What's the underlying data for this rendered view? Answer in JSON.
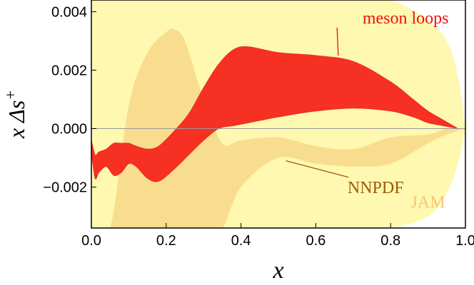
{
  "chart_data": {
    "type": "area",
    "title": "",
    "xlabel": "x",
    "ylabel": "x Δs",
    "ylabel_superscript": "+",
    "xlim": [
      0.0,
      1.0
    ],
    "ylim": [
      -0.0034,
      0.0044
    ],
    "xticks": [
      "0.0",
      "0.2",
      "0.4",
      "0.6",
      "0.8",
      "1.0"
    ],
    "yticks": [
      "−0.002",
      "0.000",
      "0.002",
      "0.004"
    ],
    "grid": false,
    "colors": {
      "jam": "#fef8b0",
      "nnpdf": "#f9dd8f",
      "meson": "#f73024",
      "meson_annot": "#ee1111",
      "nnpdf_annot": "#9c5a0a",
      "jam_annot": "#f6c574"
    },
    "series": [
      {
        "name": "JAM",
        "x": [
          0.0,
          0.1,
          0.2,
          0.3,
          0.4,
          0.5,
          0.6,
          0.7,
          0.8,
          0.9,
          0.95,
          0.98,
          1.0
        ],
        "upper": [
          0.0044,
          0.0044,
          0.0044,
          0.0044,
          0.0044,
          0.0044,
          0.0044,
          0.0044,
          0.0044,
          0.0037,
          0.003,
          0.0018,
          0.0
        ],
        "lower": [
          -0.0034,
          -0.0034,
          -0.0034,
          -0.0034,
          -0.0034,
          -0.0034,
          -0.0034,
          -0.0034,
          -0.0034,
          -0.003,
          -0.0022,
          -0.0012,
          0.0
        ]
      },
      {
        "name": "NNPDF",
        "x": [
          0.0,
          0.05,
          0.1,
          0.15,
          0.2,
          0.22,
          0.25,
          0.3,
          0.35,
          0.4,
          0.5,
          0.6,
          0.7,
          0.8,
          0.9,
          0.95,
          1.0
        ],
        "upper": [
          -0.0034,
          -0.0034,
          0.0008,
          0.0026,
          0.0033,
          0.0034,
          0.003,
          0.001,
          -0.0005,
          -0.0004,
          -0.0003,
          -0.0006,
          -0.0007,
          -0.0003,
          -0.0002,
          0.0,
          0.0
        ],
        "lower": [
          -0.0034,
          -0.0034,
          -0.0034,
          -0.0034,
          -0.0034,
          -0.0034,
          -0.0034,
          -0.0034,
          -0.0034,
          -0.002,
          -0.001,
          -0.0012,
          -0.0013,
          -0.0012,
          -0.0005,
          -0.0002,
          0.0
        ]
      },
      {
        "name": "meson loops",
        "x": [
          0.0,
          0.01,
          0.02,
          0.04,
          0.06,
          0.08,
          0.1,
          0.12,
          0.15,
          0.18,
          0.22,
          0.26,
          0.3,
          0.34,
          0.38,
          0.42,
          0.5,
          0.6,
          0.7,
          0.8,
          0.86,
          0.9,
          0.94,
          0.98
        ],
        "upper": [
          -0.0004,
          -0.0009,
          -0.0008,
          -0.0007,
          -0.0005,
          -0.0005,
          -0.0005,
          -0.0006,
          -0.0007,
          -0.0006,
          -0.0001,
          0.0005,
          0.0014,
          0.0022,
          0.0027,
          0.0028,
          0.0026,
          0.0025,
          0.0023,
          0.0016,
          0.001,
          0.0006,
          0.0003,
          0.0
        ],
        "lower": [
          -0.0008,
          -0.0017,
          -0.0015,
          -0.0013,
          -0.0016,
          -0.0015,
          -0.0012,
          -0.0013,
          -0.0017,
          -0.0018,
          -0.0014,
          -0.0009,
          -0.0004,
          0.0,
          0.0001,
          0.0002,
          0.0004,
          0.0006,
          0.0007,
          0.0006,
          0.0004,
          0.0002,
          0.0001,
          0.0
        ]
      }
    ],
    "annotations": [
      {
        "text": "meson loops",
        "x": 0.84,
        "y": 0.0036,
        "series": "meson loops",
        "arrow_to": [
          0.66,
          0.0025
        ]
      },
      {
        "text": "NNPDF",
        "x": 0.76,
        "y": -0.0022,
        "series": "NNPDF",
        "arrow_to": [
          0.52,
          -0.0011
        ]
      },
      {
        "text": "JAM",
        "x": 0.9,
        "y": -0.0027,
        "series": "JAM"
      }
    ]
  }
}
